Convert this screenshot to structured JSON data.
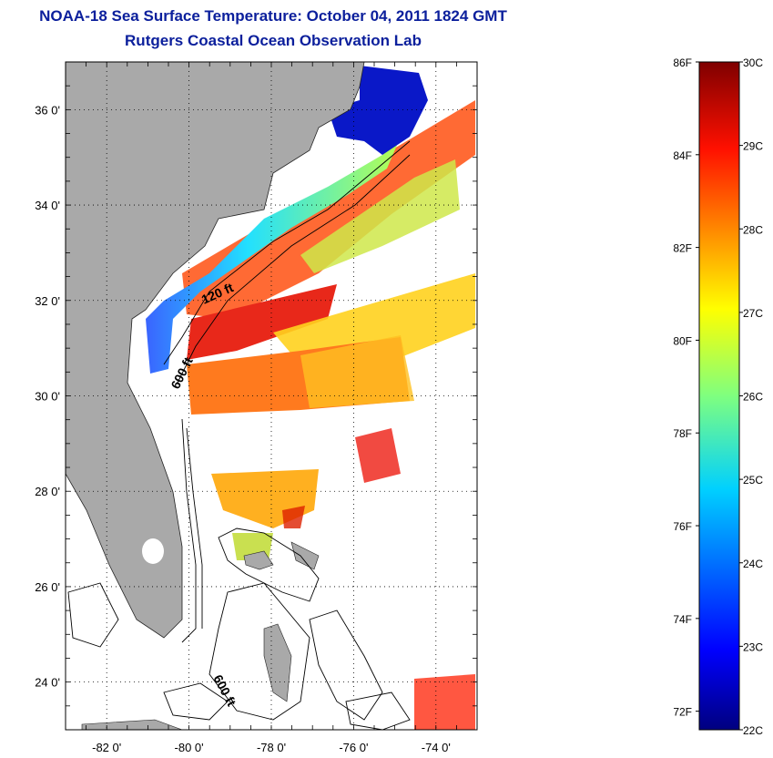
{
  "title": "NOAA-18 Sea Surface Temperature:  October 04, 2011 1824 GMT",
  "subtitle": "Rutgers Coastal Ocean Observation Lab",
  "map": {
    "lon_range": [
      -83,
      -73
    ],
    "lat_range": [
      23,
      37
    ],
    "lat_ticks": [
      "36 0'",
      "34 0'",
      "32 0'",
      "30 0'",
      "28 0'",
      "26 0'",
      "24 0'"
    ],
    "lat_values": [
      36,
      34,
      32,
      30,
      28,
      26,
      24
    ],
    "lon_ticks": [
      "-82 0'",
      "-80 0'",
      "-78 0'",
      "-76 0'",
      "-74 0'"
    ],
    "lon_values": [
      -82,
      -80,
      -78,
      -76,
      -74
    ],
    "contour_labels": [
      "120 ft",
      "600 ft",
      "600 ft"
    ],
    "land_color": "#a9a9a9",
    "grid": "dotted"
  },
  "colorbar": {
    "celsius_ticks": [
      "30C",
      "29C",
      "28C",
      "27C",
      "26C",
      "25C",
      "24C",
      "23C",
      "22C"
    ],
    "fahrenheit_ticks": [
      "86F",
      "84F",
      "82F",
      "80F",
      "78F",
      "76F",
      "74F",
      "72F"
    ],
    "colormap": "jet",
    "range_c": [
      22,
      30
    ]
  }
}
